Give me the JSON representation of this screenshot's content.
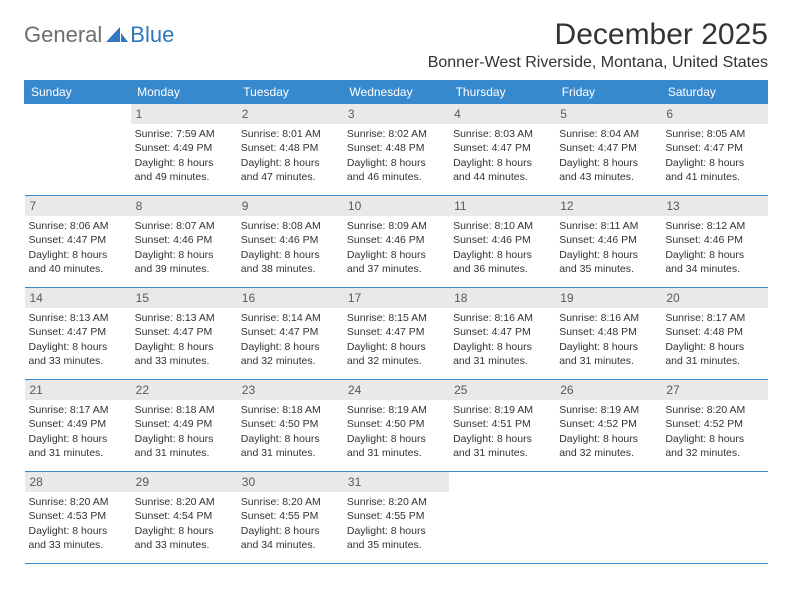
{
  "logo": {
    "word1": "General",
    "word2": "Blue"
  },
  "title": "December 2025",
  "location": "Bonner-West Riverside, Montana, United States",
  "colors": {
    "header_bg": "#3789ce",
    "header_text": "#ffffff",
    "daynum_bg": "#e9e9e9",
    "rule": "#3789ce",
    "logo_gray": "#6d6e71",
    "logo_blue": "#2f78bd"
  },
  "dayHeaders": [
    "Sunday",
    "Monday",
    "Tuesday",
    "Wednesday",
    "Thursday",
    "Friday",
    "Saturday"
  ],
  "weeks": [
    [
      {
        "num": "",
        "sunrise": "",
        "sunset": "",
        "daylight": ""
      },
      {
        "num": "1",
        "sunrise": "Sunrise: 7:59 AM",
        "sunset": "Sunset: 4:49 PM",
        "daylight": "Daylight: 8 hours and 49 minutes."
      },
      {
        "num": "2",
        "sunrise": "Sunrise: 8:01 AM",
        "sunset": "Sunset: 4:48 PM",
        "daylight": "Daylight: 8 hours and 47 minutes."
      },
      {
        "num": "3",
        "sunrise": "Sunrise: 8:02 AM",
        "sunset": "Sunset: 4:48 PM",
        "daylight": "Daylight: 8 hours and 46 minutes."
      },
      {
        "num": "4",
        "sunrise": "Sunrise: 8:03 AM",
        "sunset": "Sunset: 4:47 PM",
        "daylight": "Daylight: 8 hours and 44 minutes."
      },
      {
        "num": "5",
        "sunrise": "Sunrise: 8:04 AM",
        "sunset": "Sunset: 4:47 PM",
        "daylight": "Daylight: 8 hours and 43 minutes."
      },
      {
        "num": "6",
        "sunrise": "Sunrise: 8:05 AM",
        "sunset": "Sunset: 4:47 PM",
        "daylight": "Daylight: 8 hours and 41 minutes."
      }
    ],
    [
      {
        "num": "7",
        "sunrise": "Sunrise: 8:06 AM",
        "sunset": "Sunset: 4:47 PM",
        "daylight": "Daylight: 8 hours and 40 minutes."
      },
      {
        "num": "8",
        "sunrise": "Sunrise: 8:07 AM",
        "sunset": "Sunset: 4:46 PM",
        "daylight": "Daylight: 8 hours and 39 minutes."
      },
      {
        "num": "9",
        "sunrise": "Sunrise: 8:08 AM",
        "sunset": "Sunset: 4:46 PM",
        "daylight": "Daylight: 8 hours and 38 minutes."
      },
      {
        "num": "10",
        "sunrise": "Sunrise: 8:09 AM",
        "sunset": "Sunset: 4:46 PM",
        "daylight": "Daylight: 8 hours and 37 minutes."
      },
      {
        "num": "11",
        "sunrise": "Sunrise: 8:10 AM",
        "sunset": "Sunset: 4:46 PM",
        "daylight": "Daylight: 8 hours and 36 minutes."
      },
      {
        "num": "12",
        "sunrise": "Sunrise: 8:11 AM",
        "sunset": "Sunset: 4:46 PM",
        "daylight": "Daylight: 8 hours and 35 minutes."
      },
      {
        "num": "13",
        "sunrise": "Sunrise: 8:12 AM",
        "sunset": "Sunset: 4:46 PM",
        "daylight": "Daylight: 8 hours and 34 minutes."
      }
    ],
    [
      {
        "num": "14",
        "sunrise": "Sunrise: 8:13 AM",
        "sunset": "Sunset: 4:47 PM",
        "daylight": "Daylight: 8 hours and 33 minutes."
      },
      {
        "num": "15",
        "sunrise": "Sunrise: 8:13 AM",
        "sunset": "Sunset: 4:47 PM",
        "daylight": "Daylight: 8 hours and 33 minutes."
      },
      {
        "num": "16",
        "sunrise": "Sunrise: 8:14 AM",
        "sunset": "Sunset: 4:47 PM",
        "daylight": "Daylight: 8 hours and 32 minutes."
      },
      {
        "num": "17",
        "sunrise": "Sunrise: 8:15 AM",
        "sunset": "Sunset: 4:47 PM",
        "daylight": "Daylight: 8 hours and 32 minutes."
      },
      {
        "num": "18",
        "sunrise": "Sunrise: 8:16 AM",
        "sunset": "Sunset: 4:47 PM",
        "daylight": "Daylight: 8 hours and 31 minutes."
      },
      {
        "num": "19",
        "sunrise": "Sunrise: 8:16 AM",
        "sunset": "Sunset: 4:48 PM",
        "daylight": "Daylight: 8 hours and 31 minutes."
      },
      {
        "num": "20",
        "sunrise": "Sunrise: 8:17 AM",
        "sunset": "Sunset: 4:48 PM",
        "daylight": "Daylight: 8 hours and 31 minutes."
      }
    ],
    [
      {
        "num": "21",
        "sunrise": "Sunrise: 8:17 AM",
        "sunset": "Sunset: 4:49 PM",
        "daylight": "Daylight: 8 hours and 31 minutes."
      },
      {
        "num": "22",
        "sunrise": "Sunrise: 8:18 AM",
        "sunset": "Sunset: 4:49 PM",
        "daylight": "Daylight: 8 hours and 31 minutes."
      },
      {
        "num": "23",
        "sunrise": "Sunrise: 8:18 AM",
        "sunset": "Sunset: 4:50 PM",
        "daylight": "Daylight: 8 hours and 31 minutes."
      },
      {
        "num": "24",
        "sunrise": "Sunrise: 8:19 AM",
        "sunset": "Sunset: 4:50 PM",
        "daylight": "Daylight: 8 hours and 31 minutes."
      },
      {
        "num": "25",
        "sunrise": "Sunrise: 8:19 AM",
        "sunset": "Sunset: 4:51 PM",
        "daylight": "Daylight: 8 hours and 31 minutes."
      },
      {
        "num": "26",
        "sunrise": "Sunrise: 8:19 AM",
        "sunset": "Sunset: 4:52 PM",
        "daylight": "Daylight: 8 hours and 32 minutes."
      },
      {
        "num": "27",
        "sunrise": "Sunrise: 8:20 AM",
        "sunset": "Sunset: 4:52 PM",
        "daylight": "Daylight: 8 hours and 32 minutes."
      }
    ],
    [
      {
        "num": "28",
        "sunrise": "Sunrise: 8:20 AM",
        "sunset": "Sunset: 4:53 PM",
        "daylight": "Daylight: 8 hours and 33 minutes."
      },
      {
        "num": "29",
        "sunrise": "Sunrise: 8:20 AM",
        "sunset": "Sunset: 4:54 PM",
        "daylight": "Daylight: 8 hours and 33 minutes."
      },
      {
        "num": "30",
        "sunrise": "Sunrise: 8:20 AM",
        "sunset": "Sunset: 4:55 PM",
        "daylight": "Daylight: 8 hours and 34 minutes."
      },
      {
        "num": "31",
        "sunrise": "Sunrise: 8:20 AM",
        "sunset": "Sunset: 4:55 PM",
        "daylight": "Daylight: 8 hours and 35 minutes."
      },
      {
        "num": "",
        "sunrise": "",
        "sunset": "",
        "daylight": ""
      },
      {
        "num": "",
        "sunrise": "",
        "sunset": "",
        "daylight": ""
      },
      {
        "num": "",
        "sunrise": "",
        "sunset": "",
        "daylight": ""
      }
    ]
  ]
}
